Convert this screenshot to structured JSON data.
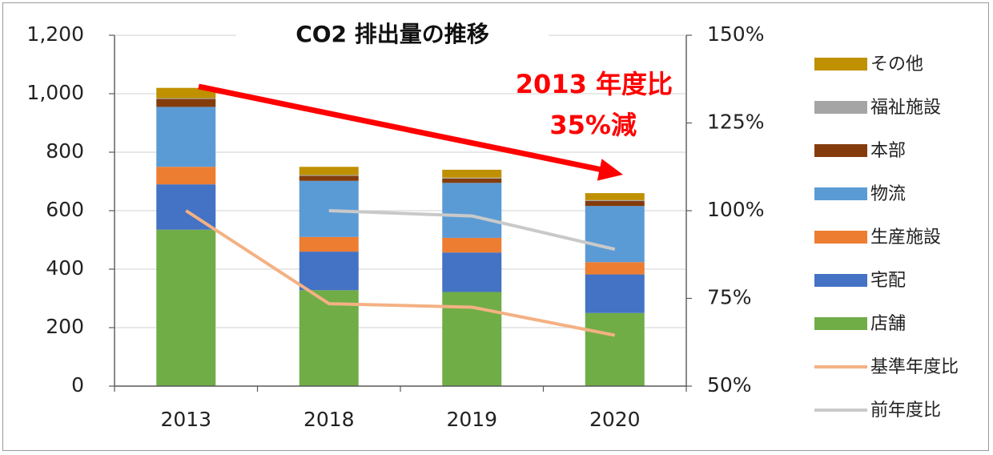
{
  "chart_data": {
    "type": "bar",
    "stacked": true,
    "title": "CO2 排出量の推移",
    "categories": [
      "2013",
      "2018",
      "2019",
      "2020"
    ],
    "ylim": [
      0,
      1200
    ],
    "y_ticks": [
      "0",
      "200",
      "400",
      "600",
      "800",
      "1,000",
      "1,200"
    ],
    "y2lim": [
      50,
      150
    ],
    "y2_ticks": [
      "50%",
      "75%",
      "100%",
      "125%",
      "150%"
    ],
    "grid": true,
    "legend_position": "right",
    "series": [
      {
        "name": "店舗",
        "color": "#70ad47",
        "values": [
          535,
          328,
          322,
          250
        ]
      },
      {
        "name": "宅配",
        "color": "#4472c4",
        "values": [
          155,
          132,
          135,
          132
        ]
      },
      {
        "name": "生産施設",
        "color": "#ed7d31",
        "values": [
          60,
          50,
          50,
          42
        ]
      },
      {
        "name": "物流",
        "color": "#5b9bd5",
        "values": [
          205,
          192,
          188,
          192
        ]
      },
      {
        "name": "本部",
        "color": "#843c0c",
        "values": [
          27,
          17,
          15,
          17
        ]
      },
      {
        "name": "福祉施設",
        "color": "#a5a5a5",
        "values": [
          3,
          3,
          3,
          3
        ]
      },
      {
        "name": "その他",
        "color": "#bf9000",
        "values": [
          35,
          28,
          27,
          24
        ]
      }
    ],
    "line_series": [
      {
        "name": "基準年度比",
        "color": "#f4b183",
        "axis": "right",
        "values": [
          100,
          73.5,
          72.5,
          64.5
        ]
      },
      {
        "name": "前年度比",
        "color": "#c9c9c9",
        "axis": "right",
        "values": [
          null,
          100,
          98.5,
          89
        ]
      }
    ],
    "legend": [
      {
        "name": "その他",
        "color": "#bf9000",
        "kind": "box"
      },
      {
        "name": "福祉施設",
        "color": "#a5a5a5",
        "kind": "box"
      },
      {
        "name": "本部",
        "color": "#843c0c",
        "kind": "box"
      },
      {
        "name": "物流",
        "color": "#5b9bd5",
        "kind": "box"
      },
      {
        "name": "生産施設",
        "color": "#ed7d31",
        "kind": "box"
      },
      {
        "name": "宅配",
        "color": "#4472c4",
        "kind": "box"
      },
      {
        "name": "店舗",
        "color": "#70ad47",
        "kind": "box"
      },
      {
        "name": "基準年度比",
        "color": "#f4b183",
        "kind": "line"
      },
      {
        "name": "前年度比",
        "color": "#c9c9c9",
        "kind": "line"
      }
    ],
    "annotation": {
      "lines": [
        "2013 年度比",
        "35%減"
      ],
      "color": "#ff0000"
    }
  }
}
